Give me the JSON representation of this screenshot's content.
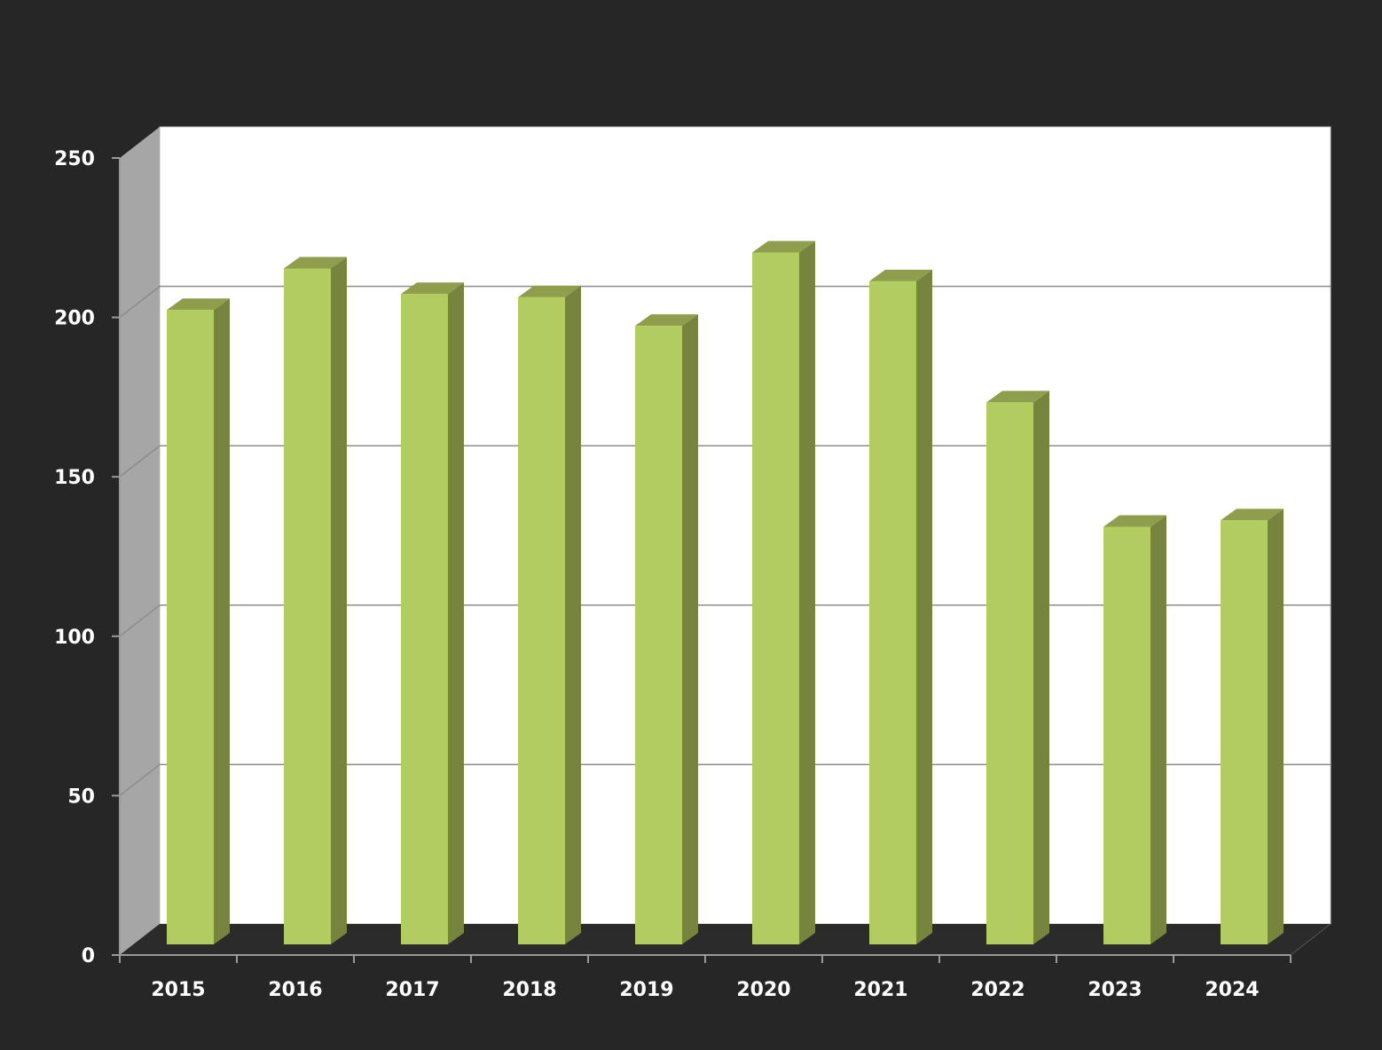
{
  "chart_data": {
    "type": "bar",
    "style": "3d-column",
    "categories": [
      "2015",
      "2016",
      "2017",
      "2018",
      "2019",
      "2020",
      "2021",
      "2022",
      "2023",
      "2024"
    ],
    "series": [
      {
        "values": [
          199,
          212,
          204,
          203,
          194,
          217,
          208,
          170,
          131,
          133
        ]
      }
    ],
    "ylim": [
      0,
      250
    ],
    "yticks": [
      "0",
      "50",
      "100",
      "150",
      "200",
      "250"
    ],
    "grid": true,
    "legend": "none",
    "colors": {
      "background": "#262626",
      "plot_back_wall": "#ffffff",
      "side_wall": "#a6a6a6",
      "floor": "#2b2b2b",
      "gridline": "#8c8c8c",
      "bar_front": "#b3cc5f",
      "bar_side": "#76843e",
      "bar_top": "#8e9e4c",
      "text": "#ffffff"
    }
  }
}
